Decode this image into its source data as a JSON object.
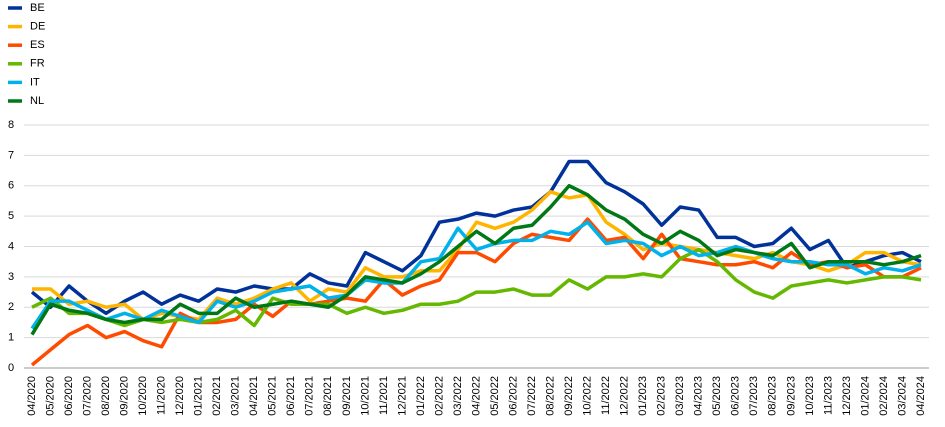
{
  "chart_data": {
    "type": "line",
    "categories": [
      "04/2020",
      "05/2020",
      "06/2020",
      "07/2020",
      "08/2020",
      "09/2020",
      "10/2020",
      "11/2020",
      "12/2020",
      "01/2021",
      "02/2021",
      "03/2021",
      "04/2021",
      "05/2021",
      "06/2021",
      "07/2021",
      "08/2021",
      "09/2021",
      "10/2021",
      "11/2021",
      "12/2021",
      "01/2022",
      "02/2022",
      "03/2022",
      "04/2022",
      "05/2022",
      "06/2022",
      "07/2022",
      "08/2022",
      "09/2022",
      "10/2022",
      "11/2022",
      "12/2022",
      "01/2023",
      "02/2023",
      "03/2023",
      "04/2023",
      "05/2023",
      "06/2023",
      "07/2023",
      "08/2023",
      "09/2023",
      "10/2023",
      "11/2023",
      "12/2023",
      "01/2024",
      "02/2024",
      "03/2024",
      "04/2024"
    ],
    "series": [
      {
        "name": "BE",
        "color": "#003299",
        "values": [
          2.5,
          2.0,
          2.7,
          2.2,
          1.8,
          2.2,
          2.5,
          2.1,
          2.4,
          2.2,
          2.6,
          2.5,
          2.7,
          2.6,
          2.6,
          3.1,
          2.8,
          2.7,
          3.8,
          3.5,
          3.2,
          3.7,
          4.8,
          4.9,
          5.1,
          5.0,
          5.2,
          5.3,
          5.8,
          6.8,
          6.8,
          6.1,
          5.8,
          5.4,
          4.7,
          5.3,
          5.2,
          4.3,
          4.3,
          4.0,
          4.1,
          4.6,
          3.9,
          4.2,
          3.3,
          3.5,
          3.7,
          3.8,
          3.5
        ]
      },
      {
        "name": "DE",
        "color": "#ffb400",
        "values": [
          2.6,
          2.6,
          2.1,
          2.2,
          2.0,
          2.1,
          1.6,
          1.8,
          1.7,
          1.6,
          2.3,
          2.1,
          2.3,
          2.6,
          2.8,
          2.2,
          2.6,
          2.5,
          3.3,
          3.0,
          3.0,
          3.2,
          3.2,
          3.9,
          4.8,
          4.6,
          4.8,
          5.2,
          5.8,
          5.6,
          5.7,
          4.8,
          4.4,
          3.9,
          4.1,
          4.0,
          3.9,
          3.8,
          3.7,
          3.6,
          3.8,
          3.5,
          3.4,
          3.2,
          3.4,
          3.8,
          3.8,
          3.5,
          3.4
        ]
      },
      {
        "name": "ES",
        "color": "#ff4b00",
        "values": [
          0.1,
          0.6,
          1.1,
          1.4,
          1.0,
          1.2,
          0.9,
          0.7,
          1.8,
          1.5,
          1.5,
          1.6,
          2.1,
          1.7,
          2.2,
          2.1,
          2.2,
          2.3,
          2.2,
          2.9,
          2.4,
          2.7,
          2.9,
          3.8,
          3.8,
          3.5,
          4.1,
          4.4,
          4.3,
          4.2,
          4.9,
          4.2,
          4.3,
          3.6,
          4.4,
          3.6,
          3.5,
          3.4,
          3.4,
          3.5,
          3.3,
          3.8,
          3.4,
          3.5,
          3.3,
          3.4,
          3.0,
          3.0,
          3.3
        ]
      },
      {
        "name": "FR",
        "color": "#65b800",
        "values": [
          2.0,
          2.3,
          1.8,
          1.8,
          1.6,
          1.4,
          1.6,
          1.5,
          1.6,
          1.5,
          1.6,
          1.9,
          1.4,
          2.3,
          2.1,
          2.1,
          2.1,
          1.8,
          2.0,
          1.8,
          1.9,
          2.1,
          2.1,
          2.2,
          2.5,
          2.5,
          2.6,
          2.4,
          2.4,
          2.9,
          2.6,
          3.0,
          3.0,
          3.1,
          3.0,
          3.6,
          3.9,
          3.5,
          2.9,
          2.5,
          2.3,
          2.7,
          2.8,
          2.9,
          2.8,
          2.9,
          3.0,
          3.0,
          2.9
        ]
      },
      {
        "name": "IT",
        "color": "#00b1ea",
        "values": [
          1.3,
          2.2,
          2.2,
          1.9,
          1.6,
          1.8,
          1.6,
          1.9,
          1.7,
          1.5,
          2.2,
          2.0,
          2.2,
          2.5,
          2.6,
          2.7,
          2.3,
          2.4,
          2.9,
          2.8,
          2.8,
          3.5,
          3.6,
          4.6,
          3.9,
          4.1,
          4.2,
          4.2,
          4.5,
          4.4,
          4.8,
          4.1,
          4.2,
          4.1,
          3.7,
          4.0,
          3.7,
          3.8,
          4.0,
          3.8,
          3.6,
          3.5,
          3.5,
          3.4,
          3.4,
          3.1,
          3.3,
          3.2,
          3.4
        ]
      },
      {
        "name": "NL",
        "color": "#007816",
        "values": [
          1.1,
          2.1,
          1.9,
          1.8,
          1.6,
          1.5,
          1.6,
          1.6,
          2.1,
          1.8,
          1.8,
          2.3,
          2.0,
          2.1,
          2.2,
          2.1,
          2.0,
          2.4,
          3.0,
          2.9,
          2.8,
          3.1,
          3.5,
          4.0,
          4.5,
          4.1,
          4.6,
          4.7,
          5.3,
          6.0,
          5.7,
          5.2,
          4.9,
          4.4,
          4.1,
          4.5,
          4.2,
          3.7,
          3.9,
          3.8,
          3.7,
          4.1,
          3.3,
          3.5,
          3.5,
          3.5,
          3.4,
          3.5,
          3.7
        ]
      }
    ],
    "ylim": [
      0,
      8
    ],
    "yticks": [
      0,
      1,
      2,
      3,
      4,
      5,
      6,
      7,
      8
    ],
    "grid": true,
    "legend": "top-left"
  }
}
